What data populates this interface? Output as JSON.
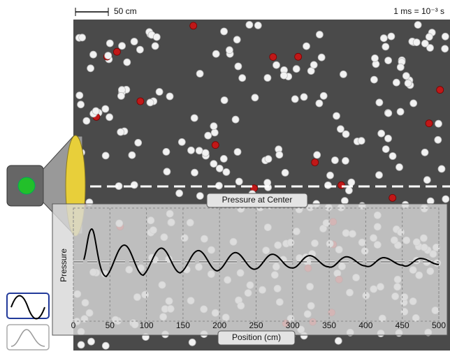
{
  "scale_label": "50 cm",
  "time_label": "1 ms = 10⁻³ s",
  "graph": {
    "title": "Pressure at Center",
    "y_label": "Pressure",
    "x_label": "Position (cm)",
    "xlim": [
      0,
      500
    ],
    "xticks": [
      0,
      50,
      100,
      150,
      200,
      250,
      300,
      350,
      400,
      450,
      500
    ]
  }
}
